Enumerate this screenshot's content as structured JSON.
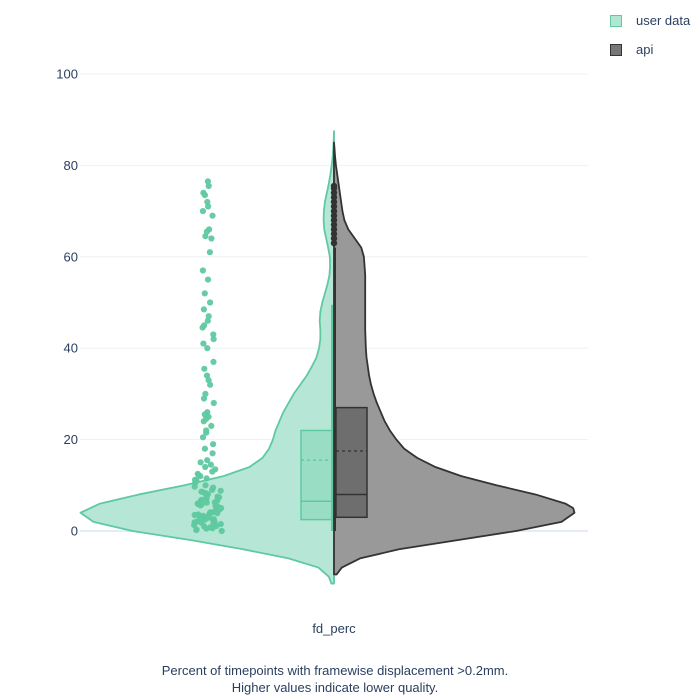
{
  "chart_data": {
    "type": "violin",
    "category": "fd_perc",
    "ylim": [
      -13,
      110
    ],
    "yticks": [
      0,
      20,
      40,
      60,
      80,
      100
    ],
    "grid": true,
    "legend_position": "top-right",
    "caption_lines": [
      "Percent of timepoints with framewise displacement >0.2mm.",
      "Higher values indicate lower quality."
    ],
    "series": [
      {
        "name": "user data",
        "side": "negative",
        "color": "#5fc9a0",
        "fill": "#b2e5d3",
        "density": [
          [
            -11.5,
            0.2
          ],
          [
            -10,
            0.4
          ],
          [
            -8,
            1.2
          ],
          [
            -6,
            3.5
          ],
          [
            -4,
            7
          ],
          [
            -2,
            11
          ],
          [
            0,
            15.5
          ],
          [
            2,
            18.5
          ],
          [
            4,
            19.5
          ],
          [
            6,
            18
          ],
          [
            8,
            15
          ],
          [
            10,
            11.5
          ],
          [
            12,
            8.5
          ],
          [
            14,
            6.5
          ],
          [
            16,
            5.5
          ],
          [
            18,
            5
          ],
          [
            20,
            4.7
          ],
          [
            22,
            4.5
          ],
          [
            24,
            4.2
          ],
          [
            26,
            3.9
          ],
          [
            28,
            3.5
          ],
          [
            30,
            3.1
          ],
          [
            32,
            2.6
          ],
          [
            34,
            2.1
          ],
          [
            36,
            1.7
          ],
          [
            38,
            1.35
          ],
          [
            40,
            1.15
          ],
          [
            42,
            1.05
          ],
          [
            44,
            1.05
          ],
          [
            46,
            1.1
          ],
          [
            48,
            1.05
          ],
          [
            50,
            0.9
          ],
          [
            52,
            0.7
          ],
          [
            54,
            0.5
          ],
          [
            56,
            0.35
          ],
          [
            58,
            0.3
          ],
          [
            60,
            0.32
          ],
          [
            62,
            0.45
          ],
          [
            64,
            0.6
          ],
          [
            66,
            0.75
          ],
          [
            68,
            0.8
          ],
          [
            70,
            0.78
          ],
          [
            72,
            0.7
          ],
          [
            74,
            0.55
          ],
          [
            76,
            0.4
          ],
          [
            78,
            0.28
          ],
          [
            80,
            0.18
          ],
          [
            82,
            0.1
          ],
          [
            84,
            0.05
          ],
          [
            86,
            0.02
          ],
          [
            87.5,
            0.0
          ]
        ],
        "box": {
          "q1": 2.5,
          "median": 6.5,
          "mean": 15.5,
          "q3": 22,
          "lowerfence": 0,
          "upperfence": 49.5
        },
        "points": [
          76.5,
          75.5,
          74,
          73.5,
          72,
          71,
          70,
          69,
          66,
          65.5,
          64.5,
          64,
          61,
          57,
          55,
          52,
          50,
          48.5,
          47,
          46,
          45,
          44.5,
          43,
          42,
          41,
          40,
          37,
          35.5,
          34,
          33,
          32,
          30,
          29,
          28,
          26,
          25.5,
          25,
          24.5,
          24,
          23,
          22,
          21.5,
          20.5,
          19,
          18,
          17,
          15.5,
          15,
          14.5,
          14,
          13.5,
          13,
          12.5,
          12,
          11.5,
          11,
          10.5,
          10,
          9.5,
          9,
          8.8,
          8.5,
          8.2,
          8,
          7.8,
          7.5,
          7.2,
          7,
          6.8,
          6.5,
          6.3,
          6,
          5.8,
          5.5,
          5.3,
          5,
          4.8,
          4.5,
          4.3,
          4,
          3.8,
          3.5,
          3.3,
          3,
          2.8,
          2.5,
          2.3,
          2,
          1.8,
          1.5,
          1.3,
          1,
          0.8,
          0.5,
          0.3,
          0,
          6.2,
          5.1,
          4.1,
          3.1,
          2.1,
          1.1,
          7.4,
          8.6,
          9.7,
          3.6,
          2.6,
          1.6,
          0.6,
          4.6,
          5.6,
          6.6,
          12.2,
          11.2,
          0.2,
          1.9,
          2.9,
          3.9,
          4.9,
          5.9
        ]
      },
      {
        "name": "api",
        "side": "positive",
        "color": "#333333",
        "fill": "#999999",
        "density": [
          [
            -9.5,
            0.2
          ],
          [
            -8,
            0.6
          ],
          [
            -6,
            2
          ],
          [
            -4,
            5
          ],
          [
            -2,
            9.5
          ],
          [
            0,
            14
          ],
          [
            2,
            17.5
          ],
          [
            4,
            18.5
          ],
          [
            5,
            18.4
          ],
          [
            6,
            17.8
          ],
          [
            8,
            15.5
          ],
          [
            10,
            12.5
          ],
          [
            12,
            9.8
          ],
          [
            14,
            7.8
          ],
          [
            16,
            6.4
          ],
          [
            18,
            5.4
          ],
          [
            20,
            4.8
          ],
          [
            22,
            4.3
          ],
          [
            24,
            3.9
          ],
          [
            26,
            3.6
          ],
          [
            28,
            3.3
          ],
          [
            30,
            3.05
          ],
          [
            32,
            2.85
          ],
          [
            34,
            2.7
          ],
          [
            36,
            2.6
          ],
          [
            38,
            2.5
          ],
          [
            40,
            2.45
          ],
          [
            44,
            2.4
          ],
          [
            48,
            2.4
          ],
          [
            52,
            2.4
          ],
          [
            56,
            2.4
          ],
          [
            60,
            2.3
          ],
          [
            62,
            2.1
          ],
          [
            64,
            1.6
          ],
          [
            66,
            1.1
          ],
          [
            68,
            0.8
          ],
          [
            70,
            0.65
          ],
          [
            72,
            0.55
          ],
          [
            74,
            0.45
          ],
          [
            76,
            0.35
          ],
          [
            78,
            0.25
          ],
          [
            80,
            0.15
          ],
          [
            82,
            0.08
          ],
          [
            84,
            0.03
          ],
          [
            85,
            0.0
          ]
        ],
        "box": {
          "q1": 3,
          "median": 8,
          "mean": 17.5,
          "q3": 27,
          "lowerfence": 0,
          "upperfence": 62
        },
        "outliers": [
          63,
          64,
          65,
          66,
          67,
          68,
          69,
          70,
          71,
          72,
          73,
          74,
          75,
          75.5
        ]
      }
    ]
  }
}
